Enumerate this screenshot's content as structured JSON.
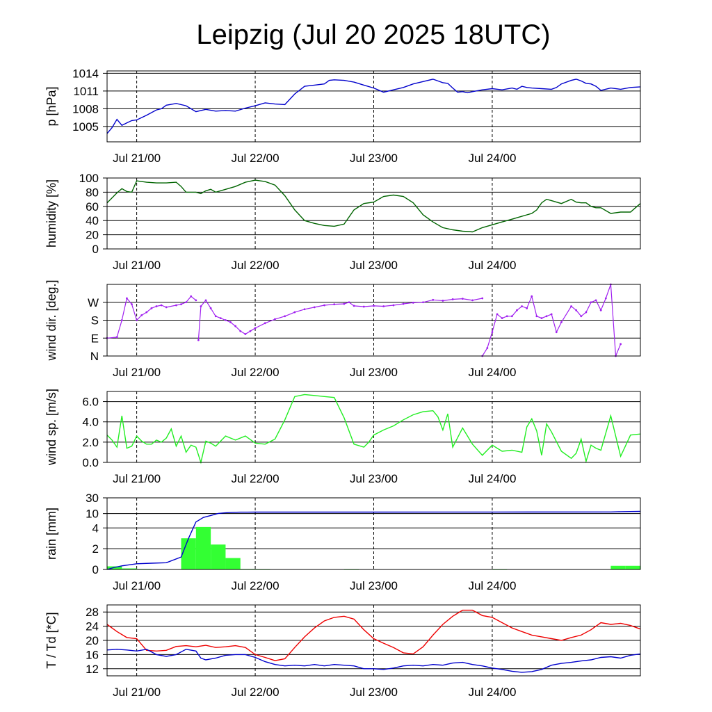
{
  "title": "Leipzig (Jul 20 2025 18UTC)",
  "x_axis": {
    "range_hours": [
      -6,
      102
    ],
    "day_marks": [
      0,
      24,
      48,
      72
    ],
    "tick_labels": [
      "Jul 21/00",
      "Jul 22/00",
      "Jul 23/00",
      "Jul 24/00"
    ]
  },
  "panels": [
    {
      "id": "pressure",
      "ylabel": "p [hPa]",
      "ylim": [
        1002.4,
        1014.4
      ],
      "gridlines": [
        1005,
        1008,
        1011,
        1014
      ],
      "tick_labels": [
        "1005",
        "1008",
        "1011",
        "1014"
      ],
      "color": "#0000cc"
    },
    {
      "id": "humidity",
      "ylabel": "humidity [%]",
      "ylim": [
        0,
        100
      ],
      "gridlines": [
        20,
        40,
        60,
        80,
        100
      ],
      "tick_labels": [
        "0",
        "20",
        "40",
        "60",
        "80",
        "100"
      ],
      "color": "#006400"
    },
    {
      "id": "wind_direction",
      "ylabel": "wind dir. [deg.]",
      "ylim": [
        0,
        360
      ],
      "gridlines": [
        90,
        180,
        270
      ],
      "tick_labels": [
        "N",
        "E",
        "S",
        "W"
      ],
      "color": "#a020f0"
    },
    {
      "id": "wind_speed",
      "ylabel": "wind sp. [m/s]",
      "ylim": [
        0,
        7
      ],
      "gridlines": [
        2,
        4,
        6
      ],
      "tick_labels": [
        "0.0",
        "2.0",
        "4.0",
        "6.0"
      ],
      "color": "#22ee22"
    },
    {
      "id": "rain",
      "ylabel": "rain [mm]",
      "ylim": [
        0,
        30
      ],
      "gridlines": [
        2,
        4,
        10,
        30
      ],
      "tick_labels": [
        "0",
        "2",
        "4",
        "10",
        "30"
      ],
      "color": "#33ff33",
      "cum_color": "#0000cc"
    },
    {
      "id": "temperature",
      "ylabel": "T / Td [*C]",
      "ylim": [
        10,
        30
      ],
      "gridlines": [
        12,
        16,
        20,
        24,
        28
      ],
      "tick_labels": [
        "12",
        "16",
        "20",
        "24",
        "28"
      ],
      "color": "#ee0000",
      "color2": "#0000cc"
    }
  ],
  "chart_data": [
    {
      "type": "line",
      "title": "",
      "ylabel": "p [hPa]",
      "unit": "hPa",
      "x_unit": "hours since Jul 21/00 UTC",
      "series": [
        {
          "x": [
            -6,
            -5,
            -4,
            -3,
            -2,
            -1,
            0,
            1,
            2,
            4,
            5,
            6,
            8,
            10,
            12,
            14,
            16,
            18,
            20,
            22,
            24,
            26,
            28,
            30,
            32,
            34,
            36,
            38,
            39,
            40,
            42,
            44,
            46,
            48,
            50,
            52,
            54,
            56,
            58,
            60,
            61,
            62,
            63,
            64,
            65,
            66,
            67,
            68,
            70,
            72,
            74,
            76,
            77,
            78,
            79,
            80,
            82,
            84,
            85,
            86,
            88,
            89,
            90,
            91,
            92,
            93,
            94,
            96,
            98,
            100,
            102
          ],
          "y": [
            1003.8,
            1004.8,
            1006.2,
            1005.2,
            1005.6,
            1006.0,
            1006.1,
            1006.5,
            1006.9,
            1007.8,
            1008.0,
            1008.6,
            1008.9,
            1008.5,
            1007.5,
            1007.9,
            1007.6,
            1007.7,
            1007.6,
            1008.1,
            1008.5,
            1009.0,
            1008.8,
            1008.7,
            1010.5,
            1011.8,
            1012.0,
            1012.2,
            1012.8,
            1012.9,
            1012.8,
            1012.5,
            1012.0,
            1011.5,
            1010.8,
            1011.2,
            1011.6,
            1012.2,
            1012.6,
            1013.0,
            1012.7,
            1012.4,
            1012.3,
            1011.5,
            1010.8,
            1010.9,
            1010.7,
            1010.9,
            1011.2,
            1011.4,
            1011.2,
            1011.5,
            1011.3,
            1011.8,
            1011.6,
            1011.5,
            1011.4,
            1011.3,
            1011.6,
            1012.2,
            1012.8,
            1013.0,
            1012.7,
            1012.3,
            1012.2,
            1011.8,
            1011.1,
            1011.5,
            1011.3,
            1011.6,
            1011.7
          ]
        }
      ]
    },
    {
      "type": "line",
      "title": "",
      "ylabel": "humidity [%]",
      "unit": "%",
      "x_unit": "hours since Jul 21/00 UTC",
      "series": [
        {
          "x": [
            -6,
            -5,
            -4,
            -3,
            -2,
            -1,
            0,
            1,
            2,
            4,
            6,
            8,
            9,
            10,
            12,
            13,
            14,
            15,
            16,
            18,
            20,
            22,
            24,
            26,
            28,
            30,
            32,
            34,
            36,
            38,
            40,
            42,
            44,
            46,
            48,
            50,
            52,
            54,
            56,
            58,
            60,
            62,
            64,
            66,
            68,
            70,
            72,
            74,
            76,
            78,
            79,
            80,
            81,
            82,
            83,
            84,
            86,
            88,
            89,
            90,
            91,
            92,
            93,
            94,
            96,
            98,
            100,
            101,
            102
          ],
          "y": [
            65,
            72,
            79,
            85,
            81,
            80,
            96,
            95,
            94,
            93,
            93,
            94,
            88,
            80,
            80,
            78,
            82,
            84,
            80,
            84,
            88,
            94,
            97,
            95,
            90,
            75,
            55,
            40,
            36,
            33,
            32,
            35,
            55,
            64,
            66,
            74,
            76,
            74,
            65,
            48,
            38,
            30,
            27,
            25,
            24,
            30,
            34,
            38,
            42,
            46,
            48,
            50,
            55,
            65,
            70,
            68,
            64,
            70,
            66,
            65,
            65,
            60,
            58,
            58,
            50,
            52,
            52,
            58,
            64
          ]
        }
      ]
    },
    {
      "type": "scatter",
      "title": "",
      "ylabel": "wind dir. [deg.]",
      "unit": "deg",
      "x_unit": "hours since Jul 21/00 UTC",
      "series": [
        {
          "x": [
            -6,
            -4,
            -3,
            -2,
            -1,
            0,
            1,
            2,
            3,
            4,
            5,
            6,
            8,
            9,
            10,
            11,
            12
          ],
          "y": [
            90,
            95,
            180,
            290,
            260,
            180,
            205,
            220,
            240,
            250,
            255,
            245,
            255,
            260,
            270,
            300,
            280
          ]
        },
        {
          "x": [
            12.5,
            13,
            14,
            15,
            16,
            17,
            18,
            19,
            20,
            21,
            22,
            23,
            24,
            26,
            28,
            30,
            32,
            34,
            36,
            38,
            40,
            42,
            43,
            44,
            46,
            48,
            50,
            52,
            54,
            56,
            58,
            60,
            62,
            64,
            66,
            68,
            70
          ],
          "y": [
            80,
            250,
            280,
            240,
            200,
            190,
            180,
            170,
            150,
            125,
            110,
            125,
            140,
            165,
            185,
            200,
            220,
            235,
            245,
            255,
            260,
            262,
            270,
            252,
            248,
            252,
            250,
            255,
            262,
            268,
            270,
            282,
            278,
            285,
            288,
            280,
            290
          ]
        },
        {
          "x": [
            70,
            71,
            72,
            73,
            74,
            75,
            76,
            77,
            78,
            79,
            80,
            81,
            82,
            83,
            84,
            85,
            86,
            88,
            89,
            90,
            91,
            92,
            93,
            94,
            95,
            96,
            97,
            98
          ],
          "y": [
            0,
            40,
            120,
            210,
            190,
            200,
            200,
            230,
            250,
            240,
            300,
            200,
            190,
            200,
            210,
            120,
            170,
            250,
            230,
            200,
            220,
            270,
            280,
            230,
            290,
            360,
            0,
            60
          ]
        }
      ]
    },
    {
      "type": "line",
      "title": "",
      "ylabel": "wind sp. [m/s]",
      "unit": "m/s",
      "x_unit": "hours since Jul 21/00 UTC",
      "series": [
        {
          "x": [
            -6,
            -5,
            -4,
            -3,
            -2,
            -1,
            0,
            1,
            2,
            3,
            4,
            5,
            6,
            7,
            8,
            9,
            10,
            11,
            12,
            13,
            14,
            15,
            16,
            18,
            20,
            22,
            24,
            26,
            28,
            30,
            32,
            34,
            36,
            38,
            40,
            42,
            44,
            46,
            47,
            48,
            50,
            52,
            54,
            56,
            58,
            60,
            61,
            62,
            63,
            64,
            66,
            68,
            70,
            72,
            74,
            76,
            78,
            79,
            80,
            81,
            82,
            83,
            84,
            86,
            88,
            89,
            90,
            91,
            92,
            93,
            94,
            96,
            98,
            100,
            102
          ],
          "y": [
            2.7,
            2.2,
            1.5,
            4.6,
            1.4,
            1.6,
            2.6,
            2.1,
            1.8,
            1.8,
            2.2,
            2.0,
            2.4,
            3.3,
            1.6,
            2.6,
            1.0,
            1.7,
            1.5,
            0.0,
            2.1,
            1.9,
            1.6,
            2.6,
            2.2,
            2.6,
            1.9,
            1.8,
            2.3,
            4.2,
            6.5,
            6.7,
            6.6,
            6.5,
            6.4,
            4.4,
            1.8,
            1.5,
            2.0,
            2.7,
            3.2,
            3.6,
            4.2,
            4.7,
            5.0,
            5.1,
            4.5,
            3.2,
            4.8,
            1.5,
            3.4,
            1.8,
            0.7,
            1.7,
            1.1,
            1.2,
            1.0,
            3.5,
            4.3,
            3.1,
            0.7,
            3.8,
            3.0,
            1.1,
            0.4,
            0.9,
            2.3,
            0.1,
            1.7,
            1.4,
            1.2,
            4.6,
            0.6,
            2.7,
            2.8
          ]
        }
      ]
    },
    {
      "type": "bar",
      "title": "",
      "ylabel": "rain [mm]",
      "unit": "mm",
      "x_unit": "hours since Jul 21/00 UTC",
      "bar_width_hours": 3,
      "bars": {
        "x": [
          -4.5,
          -1.5,
          1.5,
          10.5,
          13.5,
          16.5,
          19.5,
          22.5,
          25.5,
          43.5,
          73.5,
          97.5,
          100.5
        ],
        "values": [
          0.3,
          0.1,
          0.05,
          3.0,
          4.4,
          2.4,
          1.1,
          0.05,
          0.02,
          0.02,
          0.02,
          0.35,
          0.35
        ]
      },
      "series": [
        {
          "name": "cumulative",
          "x": [
            -6,
            -4.5,
            -3,
            -1.5,
            0,
            3,
            6,
            9,
            10.5,
            12,
            13.5,
            15,
            16.5,
            18,
            19.5,
            21,
            22.5,
            24,
            48,
            72,
            96,
            98,
            100,
            102
          ],
          "y": [
            0,
            0.2,
            0.35,
            0.45,
            0.55,
            0.6,
            0.65,
            1.2,
            3.0,
            6.5,
            8.4,
            9.2,
            10.2,
            11.1,
            11.6,
            11.8,
            11.85,
            11.9,
            11.95,
            12.0,
            12.1,
            12.4,
            12.6,
            12.8
          ]
        }
      ]
    },
    {
      "type": "line",
      "title": "",
      "ylabel": "T / Td [*C]",
      "unit": "°C",
      "x_unit": "hours since Jul 21/00 UTC",
      "series": [
        {
          "x": [
            -6,
            -4,
            -2,
            0,
            2,
            4,
            6,
            8,
            10,
            12,
            14,
            16,
            18,
            20,
            22,
            24,
            26,
            28,
            30,
            32,
            34,
            36,
            38,
            40,
            42,
            44,
            46,
            48,
            50,
            52,
            54,
            56,
            58,
            60,
            62,
            64,
            66,
            68,
            70,
            72,
            74,
            76,
            78,
            80,
            82,
            84,
            86,
            88,
            90,
            92,
            94,
            96,
            98,
            100,
            102
          ],
          "y": [
            24.5,
            22.5,
            20.8,
            20.5,
            17.2,
            17.0,
            17.2,
            18.3,
            18.5,
            18.2,
            18.6,
            18.0,
            18.2,
            18.5,
            18.0,
            16.0,
            15.2,
            14.3,
            14.8,
            18.0,
            21.0,
            23.5,
            25.5,
            26.5,
            26.8,
            26.0,
            23.0,
            20.5,
            19.2,
            18.0,
            16.5,
            16.2,
            18.2,
            21.5,
            24.5,
            26.8,
            28.5,
            28.5,
            27.0,
            26.5,
            25.0,
            23.5,
            22.5,
            21.5,
            21.0,
            20.5,
            20.0,
            20.8,
            21.5,
            23.0,
            25.0,
            24.5,
            24.8,
            24.2,
            23.2
          ]
        },
        {
          "x": [
            -6,
            -4,
            -2,
            0,
            2,
            4,
            6,
            8,
            10,
            12,
            13,
            14,
            16,
            18,
            20,
            22,
            24,
            26,
            28,
            30,
            32,
            34,
            36,
            38,
            40,
            42,
            44,
            46,
            48,
            50,
            52,
            54,
            56,
            58,
            60,
            62,
            64,
            66,
            68,
            70,
            72,
            74,
            76,
            78,
            80,
            82,
            84,
            86,
            88,
            90,
            92,
            94,
            96,
            98,
            100,
            102
          ],
          "y": [
            17.3,
            17.5,
            17.3,
            17.0,
            17.5,
            16.0,
            15.5,
            16.0,
            17.5,
            17.0,
            15.0,
            14.5,
            15.0,
            15.8,
            16.0,
            16.0,
            15.2,
            14.0,
            13.2,
            12.8,
            13.0,
            12.8,
            13.2,
            12.8,
            13.2,
            13.0,
            12.8,
            12.0,
            12.0,
            11.8,
            12.2,
            12.8,
            13.0,
            12.8,
            13.2,
            13.0,
            13.6,
            13.8,
            13.2,
            12.8,
            12.2,
            11.8,
            11.3,
            11.0,
            11.2,
            11.8,
            13.0,
            13.5,
            13.8,
            14.2,
            14.5,
            15.2,
            15.4,
            15.0,
            15.8,
            16.2
          ]
        }
      ]
    }
  ]
}
